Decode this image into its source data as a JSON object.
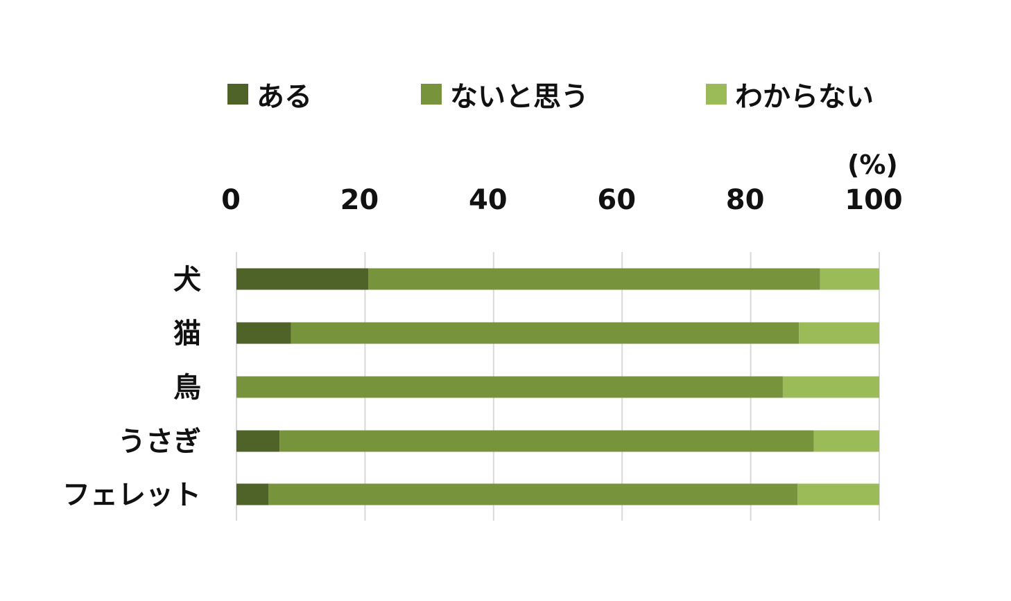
{
  "chart_data": {
    "type": "bar",
    "orientation": "horizontal",
    "stacked": true,
    "unit_label": "(%)",
    "xlim": [
      0,
      100
    ],
    "xticks": [
      "0",
      "20",
      "40",
      "60",
      "80",
      "100"
    ],
    "grid": true,
    "legend_position": "top",
    "categories": [
      "犬",
      "猫",
      "鳥",
      "うさぎ",
      "フェレット"
    ],
    "series": [
      {
        "name": "ある",
        "color": "#4f6228",
        "values": [
          20.5,
          8.5,
          0,
          6.7,
          5.0
        ]
      },
      {
        "name": "ないと思う",
        "color": "#77933c",
        "values": [
          70.3,
          79.0,
          85.0,
          83.1,
          82.3
        ]
      },
      {
        "name": "わからない",
        "color": "#9bbb59",
        "values": [
          9.2,
          12.5,
          15.0,
          10.2,
          12.7
        ]
      }
    ]
  }
}
